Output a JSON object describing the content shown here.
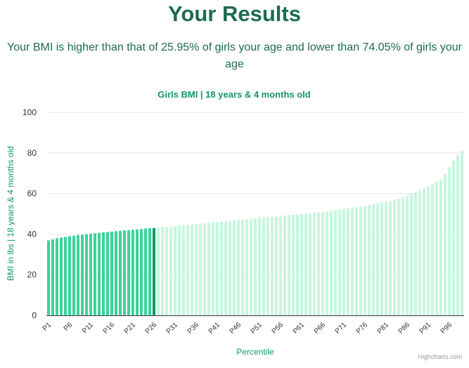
{
  "page": {
    "heading": "Your Results",
    "summary": "Your BMI is higher than that of 25.95% of girls your age and lower than 74.05% of girls your age",
    "credits": "Highcharts.com"
  },
  "colors": {
    "heading": "#1d6b52",
    "accent": "#13956b",
    "bar_below": "#3dd39b",
    "bar_highlight": "#119767",
    "bar_above": "#c8f6de",
    "grid": "#e6e6e6",
    "axis": "#333333"
  },
  "chart_data": {
    "type": "bar",
    "title": "Girls BMI | 18 years & 4 months old",
    "xlabel": "Percentile",
    "ylabel": "BMI in lbs | 18 years & 4 months old",
    "ylim": [
      0,
      100
    ],
    "yticks": [
      0,
      20,
      40,
      60,
      80,
      100
    ],
    "grid": true,
    "highlight_category": "P26",
    "categories": [
      "P1",
      "P2",
      "P3",
      "P4",
      "P5",
      "P6",
      "P7",
      "P8",
      "P9",
      "P10",
      "P11",
      "P12",
      "P13",
      "P14",
      "P15",
      "P16",
      "P17",
      "P18",
      "P19",
      "P20",
      "P21",
      "P22",
      "P23",
      "P24",
      "P25",
      "P26",
      "P27",
      "P28",
      "P29",
      "P30",
      "P31",
      "P32",
      "P33",
      "P34",
      "P35",
      "P36",
      "P37",
      "P38",
      "P39",
      "P40",
      "P41",
      "P42",
      "P43",
      "P44",
      "P45",
      "P46",
      "P47",
      "P48",
      "P49",
      "P50",
      "P51",
      "P52",
      "P53",
      "P54",
      "P55",
      "P56",
      "P57",
      "P58",
      "P59",
      "P60",
      "P61",
      "P62",
      "P63",
      "P64",
      "P65",
      "P66",
      "P67",
      "P68",
      "P69",
      "P70",
      "P71",
      "P72",
      "P73",
      "P74",
      "P75",
      "P76",
      "P77",
      "P78",
      "P79",
      "P80",
      "P81",
      "P82",
      "P83",
      "P84",
      "P85",
      "P86",
      "P87",
      "P88",
      "P89",
      "P90",
      "P91",
      "P92",
      "P93",
      "P94",
      "P95",
      "P96",
      "P97",
      "P98",
      "P99"
    ],
    "tick_labels": [
      "P1",
      "P6",
      "P11",
      "P16",
      "P21",
      "P26",
      "P31",
      "P36",
      "P41",
      "P46",
      "P51",
      "P56",
      "P61",
      "P66",
      "P71",
      "P76",
      "P81",
      "P86",
      "P91",
      "P96"
    ],
    "values": [
      37.0,
      37.5,
      38.0,
      38.4,
      38.7,
      39.0,
      39.3,
      39.6,
      39.8,
      40.0,
      40.3,
      40.5,
      40.7,
      40.9,
      41.1,
      41.3,
      41.5,
      41.7,
      41.9,
      42.0,
      42.2,
      42.4,
      42.6,
      42.8,
      43.0,
      43.1,
      43.3,
      43.5,
      43.7,
      43.8,
      44.0,
      44.2,
      44.4,
      44.6,
      44.8,
      45.0,
      45.2,
      45.4,
      45.6,
      45.8,
      46.0,
      46.2,
      46.4,
      46.6,
      46.8,
      47.0,
      47.2,
      47.4,
      47.6,
      47.8,
      48.0,
      48.2,
      48.4,
      48.6,
      48.8,
      49.0,
      49.2,
      49.4,
      49.6,
      49.8,
      50.0,
      50.2,
      50.4,
      50.6,
      50.8,
      51.0,
      51.3,
      51.6,
      51.9,
      52.2,
      52.5,
      52.8,
      53.1,
      53.4,
      53.7,
      54.0,
      54.4,
      54.8,
      55.2,
      55.6,
      56.0,
      56.4,
      56.9,
      57.5,
      58.2,
      59.0,
      59.8,
      60.7,
      61.6,
      62.6,
      63.6,
      64.6,
      65.7,
      67.0,
      69.5,
      73.0,
      76.5,
      79.0,
      81.0
    ]
  }
}
